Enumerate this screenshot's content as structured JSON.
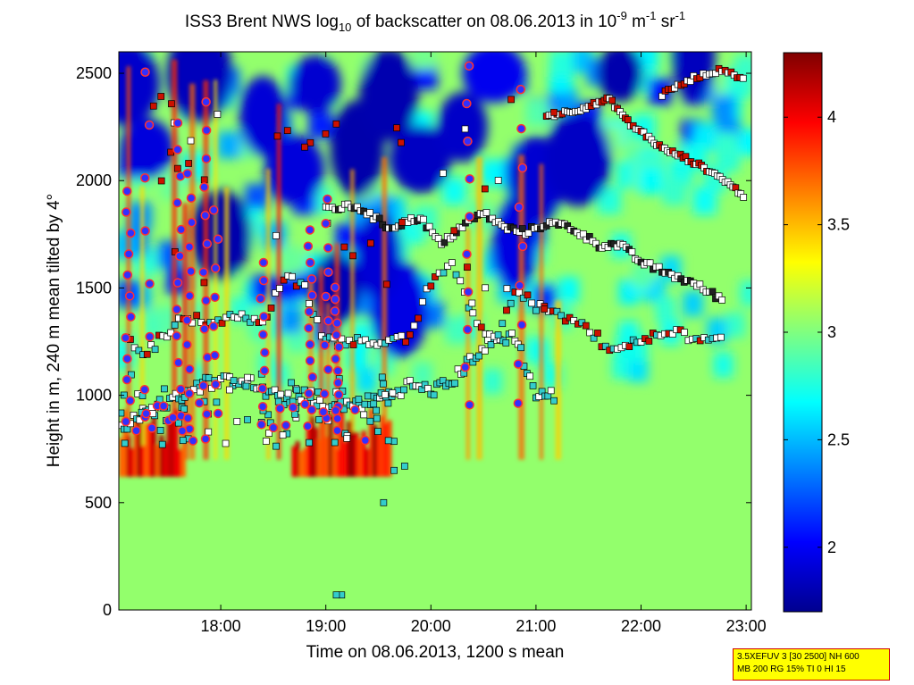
{
  "chart_data": {
    "type": "heatmap",
    "title": {
      "prefix": "ISS3 Brent NWS log",
      "sub": "10",
      "mid": " of backscatter on 08.06.2013 in 10",
      "sup1": "-9",
      "unit1": " m",
      "sup2": "-1",
      "unit2": " sr",
      "sup3": "-1"
    },
    "xlabel": "Time on 08.06.2013, 1200 s mean",
    "ylabel": "Height in m, 240 m mean tilted by 4°",
    "xlim_hours": [
      17.03,
      23.05
    ],
    "ylim": [
      0,
      2600
    ],
    "x_ticks": [
      {
        "value": 18,
        "label": "18:00"
      },
      {
        "value": 19,
        "label": "19:00"
      },
      {
        "value": 20,
        "label": "20:00"
      },
      {
        "value": 21,
        "label": "21:00"
      },
      {
        "value": 22,
        "label": "22:00"
      },
      {
        "value": 23,
        "label": "23:00"
      }
    ],
    "y_ticks": [
      {
        "value": 0,
        "label": "0"
      },
      {
        "value": 500,
        "label": "500"
      },
      {
        "value": 1000,
        "label": "1000"
      },
      {
        "value": 1500,
        "label": "1500"
      },
      {
        "value": 2000,
        "label": "2000"
      },
      {
        "value": 2500,
        "label": "2500"
      }
    ],
    "colorbar": {
      "colormap": "jet",
      "range": [
        1.7,
        4.3
      ],
      "ticks": [
        {
          "value": 2,
          "label": "2"
        },
        {
          "value": 2.5,
          "label": "2.5"
        },
        {
          "value": 3,
          "label": "3"
        },
        {
          "value": 3.5,
          "label": "3.5"
        },
        {
          "value": 4,
          "label": "4"
        }
      ]
    },
    "layers": {
      "surface_level": 3.05,
      "cloud_base_band_m": [
        620,
        1000
      ],
      "upper_low_region_m": [
        1500,
        2600
      ]
    },
    "markers": {
      "circle_fill": "#3030ff",
      "circle_edge": "#ff3030",
      "square_cyan": "#33cccc",
      "square_white": "#ffffff",
      "square_red": "#cc1100"
    },
    "lower_track": [
      [
        17.05,
        850
      ],
      [
        17.2,
        900
      ],
      [
        17.4,
        940
      ],
      [
        17.6,
        990
      ],
      [
        17.8,
        1060
      ],
      [
        18.0,
        1060
      ],
      [
        18.2,
        1080
      ],
      [
        18.4,
        1020
      ],
      [
        18.6,
        980
      ],
      [
        18.8,
        960
      ],
      [
        19.0,
        950
      ],
      [
        19.2,
        950
      ],
      [
        19.4,
        970
      ],
      [
        19.6,
        1000
      ],
      [
        19.8,
        1050
      ],
      [
        20.0,
        1020
      ],
      [
        20.2,
        1060
      ],
      [
        20.4,
        1180
      ],
      [
        20.6,
        1250
      ],
      [
        20.8,
        1280
      ],
      [
        21.0,
        1000
      ],
      [
        21.2,
        1000
      ]
    ],
    "middle_track": [
      [
        17.1,
        1250
      ],
      [
        17.3,
        1200
      ],
      [
        17.6,
        1350
      ],
      [
        17.9,
        1350
      ],
      [
        18.2,
        1360
      ],
      [
        18.4,
        1320
      ],
      [
        18.6,
        1560
      ],
      [
        18.8,
        1500
      ],
      [
        19.0,
        1250
      ],
      [
        19.3,
        1260
      ],
      [
        19.6,
        1240
      ],
      [
        19.8,
        1280
      ],
      [
        20.0,
        1520
      ],
      [
        20.2,
        1620
      ],
      [
        20.4,
        1380
      ],
      [
        20.6,
        1250
      ],
      [
        20.8,
        1500
      ],
      [
        21.0,
        1420
      ],
      [
        21.2,
        1380
      ],
      [
        21.4,
        1340
      ],
      [
        21.7,
        1220
      ],
      [
        22.0,
        1250
      ],
      [
        22.3,
        1290
      ],
      [
        22.6,
        1270
      ],
      [
        22.8,
        1240
      ]
    ],
    "upper_track": [
      [
        19.0,
        1870
      ],
      [
        19.3,
        1880
      ],
      [
        19.6,
        1780
      ],
      [
        19.9,
        1830
      ],
      [
        20.1,
        1700
      ],
      [
        20.3,
        1790
      ],
      [
        20.5,
        1850
      ],
      [
        20.7,
        1780
      ],
      [
        20.9,
        1760
      ],
      [
        21.1,
        1800
      ],
      [
        21.3,
        1790
      ],
      [
        21.6,
        1700
      ],
      [
        21.8,
        1700
      ],
      [
        22.0,
        1620
      ],
      [
        22.2,
        1580
      ],
      [
        22.5,
        1520
      ],
      [
        22.8,
        1440
      ]
    ],
    "top_track": [
      [
        21.1,
        2300
      ],
      [
        21.4,
        2330
      ],
      [
        21.7,
        2380
      ],
      [
        21.9,
        2260
      ],
      [
        22.0,
        2230
      ],
      [
        22.2,
        2150
      ],
      [
        22.4,
        2110
      ],
      [
        22.6,
        2060
      ],
      [
        22.8,
        2000
      ],
      [
        23.0,
        1920
      ]
    ],
    "high_track": [
      [
        22.2,
        2400
      ],
      [
        22.5,
        2480
      ],
      [
        22.8,
        2520
      ],
      [
        23.0,
        2460
      ]
    ]
  },
  "info_box": {
    "line1": "3.5XEFUV 3 [30 2500] NH 600",
    "line2": "MB 200 RG 15% TI 0 HI 15"
  }
}
